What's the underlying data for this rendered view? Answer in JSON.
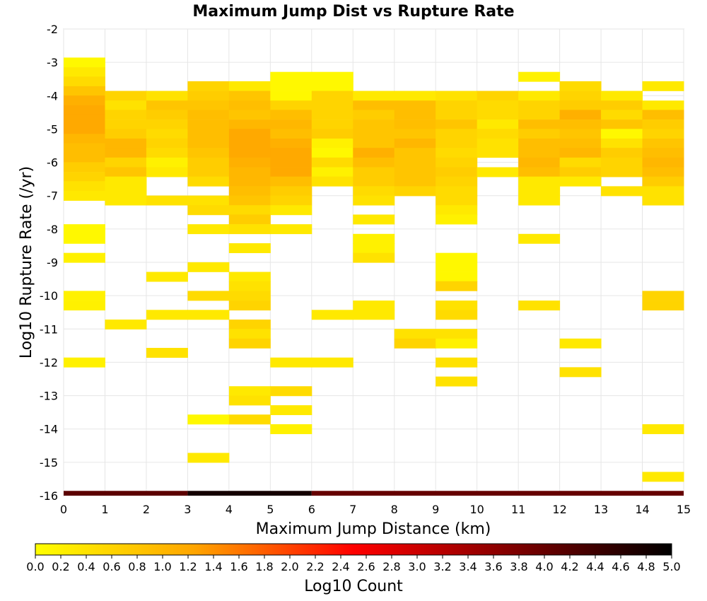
{
  "chart_data": {
    "type": "heatmap",
    "title": "Maximum Jump Dist vs Rupture Rate",
    "xlabel": "Maximum Jump Distance (km)",
    "ylabel": "Log10 Rupture Rate (/yr)",
    "xlim": [
      0,
      15
    ],
    "ylim": [
      -16,
      -2
    ],
    "x_ticks": [
      "0",
      "1",
      "2",
      "3",
      "4",
      "5",
      "6",
      "7",
      "8",
      "9",
      "10",
      "11",
      "12",
      "13",
      "14",
      "15"
    ],
    "y_ticks": [
      "-2",
      "-3",
      "-4",
      "-5",
      "-6",
      "-7",
      "-8",
      "-9",
      "-10",
      "-11",
      "-12",
      "-13",
      "-14",
      "-15",
      "-16"
    ],
    "grid": true,
    "bin_width_x": 1,
    "bin_height_y": 0.2857,
    "colorbar": {
      "label": "Log10 Count",
      "min": 0.0,
      "max": 5.0,
      "ticks": [
        "0.0",
        "0.2",
        "0.4",
        "0.6",
        "0.8",
        "1.0",
        "1.2",
        "1.4",
        "1.6",
        "1.8",
        "2.0",
        "2.2",
        "2.4",
        "2.6",
        "2.8",
        "3.0",
        "3.2",
        "3.4",
        "3.6",
        "3.8",
        "4.0",
        "4.2",
        "4.4",
        "4.6",
        "4.8",
        "5.0"
      ],
      "colors": [
        "#ffff00",
        "#ffa500",
        "#ff0000",
        "#800000",
        "#000000"
      ]
    },
    "cells": [
      [
        0,
        -3.0,
        0.1
      ],
      [
        0,
        -3.29,
        0.3
      ],
      [
        0,
        -3.57,
        0.5
      ],
      [
        0,
        -3.86,
        0.8
      ],
      [
        0,
        -4.14,
        1.1
      ],
      [
        0,
        -4.43,
        1.2
      ],
      [
        0,
        -4.71,
        1.2
      ],
      [
        0,
        -5.0,
        1.2
      ],
      [
        0,
        -5.29,
        1.0
      ],
      [
        0,
        -5.57,
        0.9
      ],
      [
        0,
        -5.86,
        0.9
      ],
      [
        0,
        -6.14,
        0.7
      ],
      [
        0,
        -6.43,
        0.6
      ],
      [
        0,
        -6.71,
        0.4
      ],
      [
        0,
        -7.0,
        0.3
      ],
      [
        0,
        -8.0,
        0.1
      ],
      [
        0,
        -8.29,
        0.1
      ],
      [
        0,
        -8.86,
        0.2
      ],
      [
        0,
        -10.0,
        0.2
      ],
      [
        0,
        -10.29,
        0.2
      ],
      [
        0,
        -12.0,
        0.2
      ],
      [
        1,
        -4.0,
        0.6
      ],
      [
        1,
        -4.29,
        0.4
      ],
      [
        1,
        -4.57,
        0.6
      ],
      [
        1,
        -4.86,
        0.6
      ],
      [
        1,
        -5.14,
        0.7
      ],
      [
        1,
        -5.43,
        1.0
      ],
      [
        1,
        -5.71,
        1.0
      ],
      [
        1,
        -6.0,
        0.6
      ],
      [
        1,
        -6.29,
        0.8
      ],
      [
        1,
        -6.57,
        0.3
      ],
      [
        1,
        -6.86,
        0.3
      ],
      [
        1,
        -7.14,
        0.3
      ],
      [
        1,
        -10.86,
        0.3
      ],
      [
        2,
        -4.0,
        0.4
      ],
      [
        2,
        -4.29,
        0.8
      ],
      [
        2,
        -4.57,
        0.7
      ],
      [
        2,
        -4.86,
        0.6
      ],
      [
        2,
        -5.14,
        0.5
      ],
      [
        2,
        -5.43,
        0.6
      ],
      [
        2,
        -5.71,
        0.5
      ],
      [
        2,
        -6.0,
        0.2
      ],
      [
        2,
        -6.29,
        0.3
      ],
      [
        2,
        -7.14,
        0.4
      ],
      [
        2,
        -9.43,
        0.3
      ],
      [
        2,
        -10.57,
        0.3
      ],
      [
        2,
        -11.71,
        0.4
      ],
      [
        3,
        -3.71,
        0.6
      ],
      [
        3,
        -4.0,
        0.7
      ],
      [
        3,
        -4.29,
        0.8
      ],
      [
        3,
        -4.57,
        0.9
      ],
      [
        3,
        -4.86,
        0.9
      ],
      [
        3,
        -5.14,
        0.9
      ],
      [
        3,
        -5.43,
        0.9
      ],
      [
        3,
        -5.71,
        0.8
      ],
      [
        3,
        -6.0,
        0.7
      ],
      [
        3,
        -6.29,
        0.7
      ],
      [
        3,
        -6.57,
        0.5
      ],
      [
        3,
        -7.14,
        0.4
      ],
      [
        3,
        -7.43,
        0.5
      ],
      [
        3,
        -8.0,
        0.3
      ],
      [
        3,
        -9.14,
        0.3
      ],
      [
        3,
        -10.0,
        0.5
      ],
      [
        3,
        -10.57,
        0.3
      ],
      [
        3,
        -13.71,
        0.1
      ],
      [
        3,
        -14.86,
        0.3
      ],
      [
        4,
        -3.71,
        0.3
      ],
      [
        4,
        -4.0,
        0.8
      ],
      [
        4,
        -4.29,
        0.9
      ],
      [
        4,
        -4.57,
        0.8
      ],
      [
        4,
        -4.86,
        1.0
      ],
      [
        4,
        -5.14,
        1.2
      ],
      [
        4,
        -5.43,
        1.2
      ],
      [
        4,
        -5.71,
        1.2
      ],
      [
        4,
        -6.0,
        1.1
      ],
      [
        4,
        -6.29,
        1.0
      ],
      [
        4,
        -6.57,
        1.0
      ],
      [
        4,
        -6.86,
        0.9
      ],
      [
        4,
        -7.14,
        0.8
      ],
      [
        4,
        -7.43,
        0.5
      ],
      [
        4,
        -7.71,
        0.7
      ],
      [
        4,
        -8.0,
        0.4
      ],
      [
        4,
        -8.57,
        0.3
      ],
      [
        4,
        -9.43,
        0.3
      ],
      [
        4,
        -9.71,
        0.4
      ],
      [
        4,
        -10.0,
        0.5
      ],
      [
        4,
        -10.29,
        0.6
      ],
      [
        4,
        -10.86,
        0.6
      ],
      [
        4,
        -11.14,
        0.4
      ],
      [
        4,
        -11.43,
        0.6
      ],
      [
        4,
        -12.86,
        0.3
      ],
      [
        4,
        -13.14,
        0.4
      ],
      [
        4,
        -13.71,
        0.5
      ],
      [
        5,
        -3.43,
        0.1
      ],
      [
        5,
        -3.71,
        0.1
      ],
      [
        5,
        -4.0,
        0.1
      ],
      [
        5,
        -4.29,
        0.6
      ],
      [
        5,
        -4.57,
        0.9
      ],
      [
        5,
        -4.86,
        1.0
      ],
      [
        5,
        -5.14,
        0.9
      ],
      [
        5,
        -5.43,
        1.1
      ],
      [
        5,
        -5.71,
        1.2
      ],
      [
        5,
        -6.0,
        1.2
      ],
      [
        5,
        -6.29,
        1.2
      ],
      [
        5,
        -6.57,
        0.9
      ],
      [
        5,
        -6.86,
        0.7
      ],
      [
        5,
        -7.14,
        0.6
      ],
      [
        5,
        -7.43,
        0.3
      ],
      [
        5,
        -8.0,
        0.3
      ],
      [
        5,
        -12.0,
        0.3
      ],
      [
        5,
        -12.86,
        0.5
      ],
      [
        5,
        -13.43,
        0.3
      ],
      [
        5,
        -14.0,
        0.2
      ],
      [
        6,
        -3.43,
        0.1
      ],
      [
        6,
        -3.71,
        0.1
      ],
      [
        6,
        -4.0,
        0.6
      ],
      [
        6,
        -4.29,
        0.6
      ],
      [
        6,
        -4.57,
        0.6
      ],
      [
        6,
        -4.86,
        0.6
      ],
      [
        6,
        -5.14,
        0.7
      ],
      [
        6,
        -5.43,
        0.2
      ],
      [
        6,
        -5.71,
        0.1
      ],
      [
        6,
        -6.0,
        0.5
      ],
      [
        6,
        -6.29,
        0.2
      ],
      [
        6,
        -6.57,
        0.4
      ],
      [
        6,
        -10.57,
        0.3
      ],
      [
        6,
        -12.0,
        0.3
      ],
      [
        7,
        -4.0,
        0.3
      ],
      [
        7,
        -4.29,
        0.9
      ],
      [
        7,
        -4.57,
        0.7
      ],
      [
        7,
        -4.86,
        0.8
      ],
      [
        7,
        -5.14,
        0.8
      ],
      [
        7,
        -5.43,
        0.8
      ],
      [
        7,
        -5.71,
        1.1
      ],
      [
        7,
        -6.0,
        0.9
      ],
      [
        7,
        -6.29,
        0.7
      ],
      [
        7,
        -6.57,
        0.7
      ],
      [
        7,
        -6.86,
        0.5
      ],
      [
        7,
        -7.14,
        0.4
      ],
      [
        7,
        -7.71,
        0.3
      ],
      [
        7,
        -8.29,
        0.2
      ],
      [
        7,
        -8.57,
        0.2
      ],
      [
        7,
        -8.86,
        0.4
      ],
      [
        7,
        -10.29,
        0.3
      ],
      [
        7,
        -10.57,
        0.3
      ],
      [
        8,
        -4.0,
        0.3
      ],
      [
        8,
        -4.29,
        0.9
      ],
      [
        8,
        -4.57,
        0.9
      ],
      [
        8,
        -4.86,
        0.9
      ],
      [
        8,
        -5.14,
        0.8
      ],
      [
        8,
        -5.43,
        1.0
      ],
      [
        8,
        -5.71,
        0.8
      ],
      [
        8,
        -6.0,
        0.8
      ],
      [
        8,
        -6.29,
        0.8
      ],
      [
        8,
        -6.57,
        0.8
      ],
      [
        8,
        -6.86,
        0.6
      ],
      [
        8,
        -11.14,
        0.4
      ],
      [
        8,
        -11.43,
        0.6
      ],
      [
        9,
        -4.0,
        0.4
      ],
      [
        9,
        -4.29,
        0.6
      ],
      [
        9,
        -4.57,
        0.6
      ],
      [
        9,
        -4.86,
        0.8
      ],
      [
        9,
        -5.14,
        0.6
      ],
      [
        9,
        -5.43,
        0.6
      ],
      [
        9,
        -5.71,
        0.5
      ],
      [
        9,
        -6.0,
        0.6
      ],
      [
        9,
        -6.29,
        0.7
      ],
      [
        9,
        -6.57,
        0.6
      ],
      [
        9,
        -6.86,
        0.5
      ],
      [
        9,
        -7.14,
        0.5
      ],
      [
        9,
        -7.43,
        0.3
      ],
      [
        9,
        -7.71,
        0.2
      ],
      [
        9,
        -8.86,
        0.1
      ],
      [
        9,
        -9.14,
        0.1
      ],
      [
        9,
        -9.43,
        0.1
      ],
      [
        9,
        -9.71,
        0.6
      ],
      [
        9,
        -10.29,
        0.4
      ],
      [
        9,
        -10.57,
        0.5
      ],
      [
        9,
        -11.14,
        0.4
      ],
      [
        9,
        -11.43,
        0.2
      ],
      [
        9,
        -12.0,
        0.4
      ],
      [
        9,
        -12.57,
        0.4
      ],
      [
        10,
        -4.0,
        0.6
      ],
      [
        10,
        -4.29,
        0.5
      ],
      [
        10,
        -4.57,
        0.5
      ],
      [
        10,
        -4.86,
        0.3
      ],
      [
        10,
        -5.14,
        0.5
      ],
      [
        10,
        -5.43,
        0.4
      ],
      [
        10,
        -5.71,
        0.4
      ],
      [
        10,
        -6.29,
        0.3
      ],
      [
        11,
        -3.43,
        0.2
      ],
      [
        11,
        -4.0,
        0.3
      ],
      [
        11,
        -4.29,
        0.6
      ],
      [
        11,
        -4.57,
        0.6
      ],
      [
        11,
        -4.86,
        0.9
      ],
      [
        11,
        -5.14,
        0.7
      ],
      [
        11,
        -5.43,
        0.9
      ],
      [
        11,
        -5.71,
        0.9
      ],
      [
        11,
        -6.0,
        1.0
      ],
      [
        11,
        -6.29,
        0.9
      ],
      [
        11,
        -6.57,
        0.3
      ],
      [
        11,
        -6.86,
        0.3
      ],
      [
        11,
        -7.14,
        0.3
      ],
      [
        11,
        -8.29,
        0.3
      ],
      [
        11,
        -10.29,
        0.4
      ],
      [
        12,
        -3.71,
        0.5
      ],
      [
        12,
        -4.0,
        0.6
      ],
      [
        12,
        -4.29,
        0.7
      ],
      [
        12,
        -4.57,
        1.1
      ],
      [
        12,
        -4.86,
        0.9
      ],
      [
        12,
        -5.14,
        0.8
      ],
      [
        12,
        -5.43,
        0.9
      ],
      [
        12,
        -5.71,
        1.0
      ],
      [
        12,
        -6.0,
        0.5
      ],
      [
        12,
        -6.29,
        0.7
      ],
      [
        12,
        -6.57,
        0.3
      ],
      [
        12,
        -11.43,
        0.3
      ],
      [
        12,
        -12.29,
        0.4
      ],
      [
        13,
        -4.0,
        0.3
      ],
      [
        13,
        -4.29,
        0.7
      ],
      [
        13,
        -4.57,
        0.5
      ],
      [
        13,
        -4.86,
        0.8
      ],
      [
        13,
        -5.14,
        0.1
      ],
      [
        13,
        -5.43,
        0.4
      ],
      [
        13,
        -5.71,
        0.7
      ],
      [
        13,
        -6.0,
        0.6
      ],
      [
        13,
        -6.29,
        0.6
      ],
      [
        13,
        -6.86,
        0.4
      ],
      [
        14,
        -3.71,
        0.3
      ],
      [
        14,
        -4.29,
        0.3
      ],
      [
        14,
        -4.57,
        0.9
      ],
      [
        14,
        -4.86,
        0.7
      ],
      [
        14,
        -5.14,
        0.6
      ],
      [
        14,
        -5.43,
        0.8
      ],
      [
        14,
        -5.71,
        0.9
      ],
      [
        14,
        -6.0,
        1.0
      ],
      [
        14,
        -6.29,
        0.9
      ],
      [
        14,
        -6.57,
        0.7
      ],
      [
        14,
        -6.86,
        0.4
      ],
      [
        14,
        -7.14,
        0.4
      ],
      [
        14,
        -10.0,
        0.6
      ],
      [
        14,
        -10.29,
        0.6
      ],
      [
        14,
        -14.0,
        0.3
      ],
      [
        14,
        -15.43,
        0.3
      ]
    ],
    "bottom_row": {
      "y": -16,
      "segments": [
        {
          "x_start": 0,
          "x_end": 3,
          "value": 4.1
        },
        {
          "x_start": 3,
          "x_end": 6,
          "value": 4.8
        },
        {
          "x_start": 6,
          "x_end": 15,
          "value": 4.0
        }
      ]
    }
  }
}
